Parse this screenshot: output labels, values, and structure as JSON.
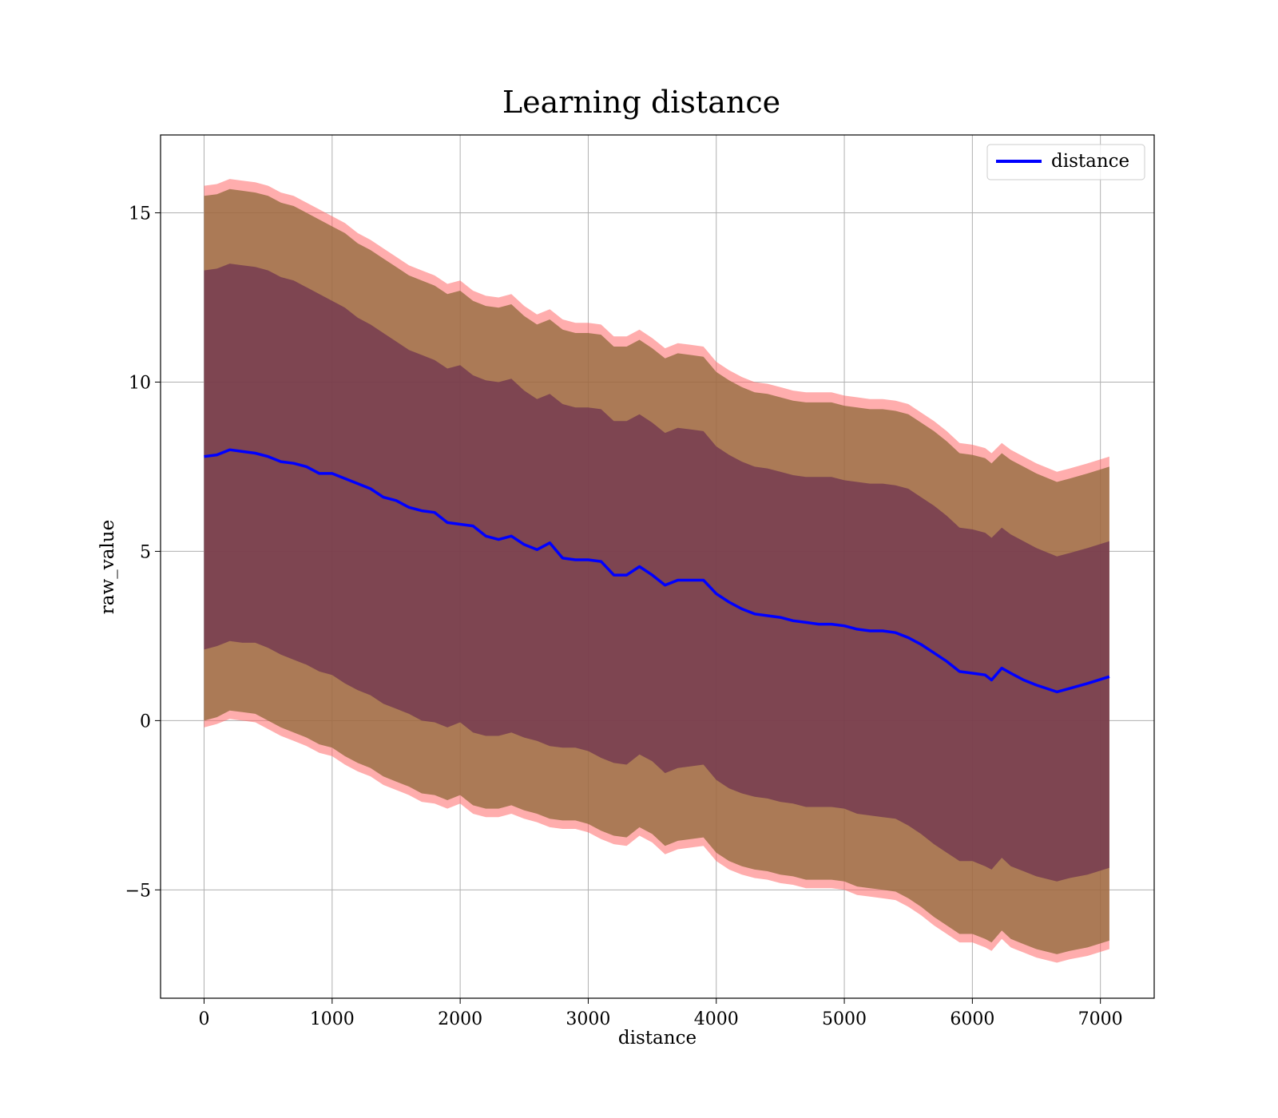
{
  "chart_data": {
    "type": "line",
    "title": "Learning distance",
    "xlabel": "distance",
    "ylabel": "raw_value",
    "xlim": [
      -340,
      7420
    ],
    "ylim": [
      -8.2,
      17.3
    ],
    "xticks": [
      0,
      1000,
      2000,
      3000,
      4000,
      5000,
      6000,
      7000
    ],
    "xtick_labels": [
      "0",
      "1000",
      "2000",
      "3000",
      "4000",
      "5000",
      "6000",
      "7000"
    ],
    "yticks": [
      -5,
      0,
      5,
      10,
      15
    ],
    "ytick_labels": [
      "−5",
      "0",
      "5",
      "10",
      "15"
    ],
    "grid": true,
    "legend_position": "top-right",
    "series": [
      {
        "name": "distance",
        "color": "#0000ff",
        "x": [
          0,
          100,
          200,
          300,
          400,
          500,
          600,
          700,
          800,
          900,
          1000,
          1100,
          1200,
          1300,
          1400,
          1500,
          1600,
          1700,
          1800,
          1900,
          2000,
          2100,
          2200,
          2300,
          2400,
          2500,
          2600,
          2700,
          2800,
          2900,
          3000,
          3100,
          3200,
          3300,
          3400,
          3500,
          3600,
          3700,
          3800,
          3900,
          4000,
          4100,
          4200,
          4300,
          4400,
          4500,
          4600,
          4700,
          4800,
          4900,
          5000,
          5100,
          5200,
          5300,
          5400,
          5500,
          5600,
          5700,
          5800,
          5900,
          6000,
          6100,
          6150,
          6230,
          6300,
          6400,
          6500,
          6660,
          6760,
          6900,
          7070
        ],
        "y": [
          7.8,
          7.85,
          8.0,
          7.95,
          7.9,
          7.8,
          7.65,
          7.6,
          7.5,
          7.3,
          7.3,
          7.15,
          7.0,
          6.85,
          6.6,
          6.5,
          6.3,
          6.2,
          6.15,
          5.85,
          5.8,
          5.75,
          5.45,
          5.35,
          5.45,
          5.2,
          5.05,
          5.25,
          4.8,
          4.75,
          4.75,
          4.7,
          4.3,
          4.3,
          4.55,
          4.3,
          4.0,
          4.15,
          4.15,
          4.15,
          3.75,
          3.5,
          3.3,
          3.15,
          3.1,
          3.05,
          2.95,
          2.9,
          2.85,
          2.85,
          2.8,
          2.7,
          2.65,
          2.65,
          2.6,
          2.45,
          2.25,
          2.0,
          1.75,
          1.45,
          1.4,
          1.35,
          1.2,
          1.55,
          1.4,
          1.2,
          1.05,
          0.85,
          0.95,
          1.1,
          1.3
        ]
      }
    ],
    "bands": [
      {
        "role": "outer band",
        "color": "#ff6a6a",
        "lower": [
          -0.2,
          -0.1,
          0.05,
          0.0,
          -0.05,
          -0.25,
          -0.45,
          -0.6,
          -0.75,
          -0.95,
          -1.05,
          -1.3,
          -1.5,
          -1.65,
          -1.9,
          -2.05,
          -2.2,
          -2.4,
          -2.45,
          -2.6,
          -2.45,
          -2.75,
          -2.85,
          -2.85,
          -2.75,
          -2.9,
          -3.0,
          -3.15,
          -3.2,
          -3.2,
          -3.3,
          -3.5,
          -3.65,
          -3.7,
          -3.4,
          -3.6,
          -3.95,
          -3.8,
          -3.75,
          -3.7,
          -4.15,
          -4.4,
          -4.55,
          -4.65,
          -4.7,
          -4.8,
          -4.85,
          -4.95,
          -4.95,
          -4.95,
          -5.0,
          -5.15,
          -5.2,
          -5.25,
          -5.3,
          -5.5,
          -5.75,
          -6.05,
          -6.3,
          -6.55,
          -6.55,
          -6.7,
          -6.8,
          -6.45,
          -6.7,
          -6.85,
          -7.0,
          -7.15,
          -7.05,
          -6.95,
          -6.75
        ],
        "upper": [
          15.8,
          15.85,
          16.0,
          15.95,
          15.9,
          15.8,
          15.6,
          15.5,
          15.3,
          15.1,
          14.9,
          14.7,
          14.4,
          14.2,
          13.95,
          13.7,
          13.45,
          13.3,
          13.15,
          12.9,
          13.0,
          12.7,
          12.55,
          12.5,
          12.6,
          12.25,
          12.0,
          12.15,
          11.85,
          11.75,
          11.75,
          11.7,
          11.35,
          11.35,
          11.55,
          11.3,
          11.0,
          11.15,
          11.1,
          11.05,
          10.6,
          10.35,
          10.15,
          10.0,
          9.95,
          9.85,
          9.75,
          9.7,
          9.7,
          9.7,
          9.6,
          9.55,
          9.5,
          9.5,
          9.45,
          9.35,
          9.1,
          8.85,
          8.55,
          8.2,
          8.15,
          8.05,
          7.9,
          8.2,
          8.0,
          7.8,
          7.6,
          7.35,
          7.45,
          7.6,
          7.8
        ]
      },
      {
        "role": "middle band",
        "color": "#8f6a3a",
        "lower": [
          0.0,
          0.1,
          0.3,
          0.25,
          0.2,
          0.0,
          -0.2,
          -0.35,
          -0.5,
          -0.7,
          -0.8,
          -1.05,
          -1.25,
          -1.4,
          -1.65,
          -1.8,
          -1.95,
          -2.15,
          -2.2,
          -2.35,
          -2.2,
          -2.5,
          -2.6,
          -2.6,
          -2.5,
          -2.65,
          -2.75,
          -2.9,
          -2.95,
          -2.95,
          -3.05,
          -3.25,
          -3.4,
          -3.45,
          -3.15,
          -3.35,
          -3.7,
          -3.55,
          -3.5,
          -3.45,
          -3.9,
          -4.15,
          -4.3,
          -4.4,
          -4.45,
          -4.55,
          -4.6,
          -4.7,
          -4.7,
          -4.7,
          -4.75,
          -4.9,
          -4.95,
          -5.0,
          -5.05,
          -5.25,
          -5.5,
          -5.8,
          -6.05,
          -6.3,
          -6.3,
          -6.45,
          -6.55,
          -6.2,
          -6.45,
          -6.6,
          -6.75,
          -6.9,
          -6.8,
          -6.7,
          -6.5
        ],
        "upper": [
          15.5,
          15.55,
          15.7,
          15.65,
          15.6,
          15.5,
          15.3,
          15.2,
          15.0,
          14.8,
          14.6,
          14.4,
          14.1,
          13.9,
          13.65,
          13.4,
          13.15,
          13.0,
          12.85,
          12.6,
          12.7,
          12.4,
          12.25,
          12.2,
          12.3,
          11.95,
          11.7,
          11.85,
          11.55,
          11.45,
          11.45,
          11.4,
          11.05,
          11.05,
          11.25,
          11.0,
          10.7,
          10.85,
          10.8,
          10.75,
          10.3,
          10.05,
          9.85,
          9.7,
          9.65,
          9.55,
          9.45,
          9.4,
          9.4,
          9.4,
          9.3,
          9.25,
          9.2,
          9.2,
          9.15,
          9.05,
          8.8,
          8.55,
          8.25,
          7.9,
          7.85,
          7.75,
          7.6,
          7.9,
          7.7,
          7.5,
          7.3,
          7.05,
          7.15,
          7.3,
          7.5
        ]
      },
      {
        "role": "inner band",
        "color": "#6b2f50",
        "lower": [
          2.1,
          2.2,
          2.35,
          2.3,
          2.3,
          2.15,
          1.95,
          1.8,
          1.65,
          1.45,
          1.35,
          1.1,
          0.9,
          0.75,
          0.5,
          0.35,
          0.2,
          0.0,
          -0.05,
          -0.2,
          -0.05,
          -0.35,
          -0.45,
          -0.45,
          -0.35,
          -0.5,
          -0.6,
          -0.75,
          -0.8,
          -0.8,
          -0.9,
          -1.1,
          -1.25,
          -1.3,
          -1.0,
          -1.2,
          -1.55,
          -1.4,
          -1.35,
          -1.3,
          -1.75,
          -2.0,
          -2.15,
          -2.25,
          -2.3,
          -2.4,
          -2.45,
          -2.55,
          -2.55,
          -2.55,
          -2.6,
          -2.75,
          -2.8,
          -2.85,
          -2.9,
          -3.1,
          -3.35,
          -3.65,
          -3.9,
          -4.15,
          -4.15,
          -4.3,
          -4.4,
          -4.05,
          -4.3,
          -4.45,
          -4.6,
          -4.75,
          -4.65,
          -4.55,
          -4.35
        ],
        "upper": [
          13.3,
          13.35,
          13.5,
          13.45,
          13.4,
          13.3,
          13.1,
          13.0,
          12.8,
          12.6,
          12.4,
          12.2,
          11.9,
          11.7,
          11.45,
          11.2,
          10.95,
          10.8,
          10.65,
          10.4,
          10.5,
          10.2,
          10.05,
          10.0,
          10.1,
          9.75,
          9.5,
          9.65,
          9.35,
          9.25,
          9.25,
          9.2,
          8.85,
          8.85,
          9.05,
          8.8,
          8.5,
          8.65,
          8.6,
          8.55,
          8.1,
          7.85,
          7.65,
          7.5,
          7.45,
          7.35,
          7.25,
          7.2,
          7.2,
          7.2,
          7.1,
          7.05,
          7.0,
          7.0,
          6.95,
          6.85,
          6.6,
          6.35,
          6.05,
          5.7,
          5.65,
          5.55,
          5.4,
          5.7,
          5.5,
          5.3,
          5.1,
          4.85,
          4.95,
          5.1,
          5.3
        ]
      }
    ]
  }
}
